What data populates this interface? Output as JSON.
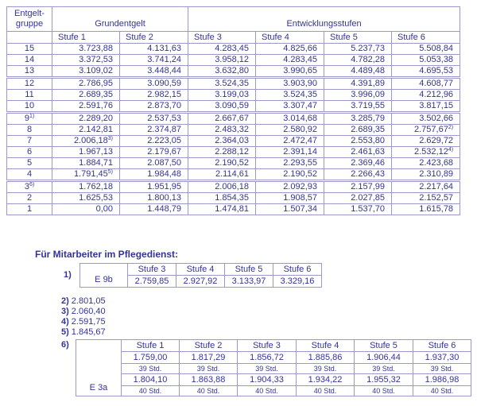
{
  "colors": {
    "text": "#333399",
    "border": "#9999cc",
    "background": "#ffffff"
  },
  "main_table": {
    "corner_header_line1": "Entgelt-",
    "corner_header_line2": "gruppe",
    "group_headers": {
      "grundentgelt": "Grundentgelt",
      "entwicklungsstufen": "Entwicklungsstufen"
    },
    "stufe_headers": [
      "Stufe 1",
      "Stufe 2",
      "Stufe 3",
      "Stufe 4",
      "Stufe 5",
      "Stufe 6"
    ],
    "rows": [
      {
        "group": "15",
        "group_sup": "",
        "values": [
          "3.723,88",
          "4.131,63",
          "4.283,45",
          "4.825,66",
          "5.237,73",
          "5.508,84"
        ],
        "value_sups": [
          "",
          "",
          "",
          "",
          "",
          ""
        ],
        "separator_below": false
      },
      {
        "group": "14",
        "group_sup": "",
        "values": [
          "3.372,53",
          "3.741,24",
          "3.958,12",
          "4.283,45",
          "4.782,28",
          "5.053,38"
        ],
        "value_sups": [
          "",
          "",
          "",
          "",
          "",
          ""
        ],
        "separator_below": false
      },
      {
        "group": "13",
        "group_sup": "",
        "values": [
          "3.109,02",
          "3.448,44",
          "3.632,80",
          "3.990,65",
          "4.489,48",
          "4.695,53"
        ],
        "value_sups": [
          "",
          "",
          "",
          "",
          "",
          ""
        ],
        "separator_below": true
      },
      {
        "group": "12",
        "group_sup": "",
        "values": [
          "2.786,95",
          "3.090,59",
          "3.524,35",
          "3.903,90",
          "4.391,89",
          "4.608,77"
        ],
        "value_sups": [
          "",
          "",
          "",
          "",
          "",
          ""
        ],
        "separator_below": false
      },
      {
        "group": "11",
        "group_sup": "",
        "values": [
          "2.689,35",
          "2.982,15",
          "3.199,03",
          "3.524,35",
          "3.996,09",
          "4.212,96"
        ],
        "value_sups": [
          "",
          "",
          "",
          "",
          "",
          ""
        ],
        "separator_below": false
      },
      {
        "group": "10",
        "group_sup": "",
        "values": [
          "2.591,76",
          "2.873,70",
          "3.090,59",
          "3.307,47",
          "3.719,55",
          "3.817,15"
        ],
        "value_sups": [
          "",
          "",
          "",
          "",
          "",
          ""
        ],
        "separator_below": true
      },
      {
        "group": "9",
        "group_sup": "1)",
        "values": [
          "2.289,20",
          "2.537,53",
          "2.667,67",
          "3.014,68",
          "3.285,79",
          "3.502,66"
        ],
        "value_sups": [
          "",
          "",
          "",
          "",
          "",
          ""
        ],
        "separator_below": false
      },
      {
        "group": "8",
        "group_sup": "",
        "values": [
          "2.142,81",
          "2.374,87",
          "2.483,32",
          "2.580,92",
          "2.689,35",
          "2.757,67"
        ],
        "value_sups": [
          "",
          "",
          "",
          "",
          "",
          "2)"
        ],
        "separator_below": false
      },
      {
        "group": "7",
        "group_sup": "",
        "values": [
          "2.006,18",
          "2.223,05",
          "2.364,03",
          "2.472,47",
          "2.553,80",
          "2.629,72"
        ],
        "value_sups": [
          "3)",
          "",
          "",
          "",
          "",
          ""
        ],
        "separator_below": false
      },
      {
        "group": "6",
        "group_sup": "",
        "values": [
          "1.967,13",
          "2.179,67",
          "2.288,12",
          "2.391,14",
          "2.461,63",
          "2.532,12"
        ],
        "value_sups": [
          "",
          "",
          "",
          "",
          "",
          "4)"
        ],
        "separator_below": false
      },
      {
        "group": "5",
        "group_sup": "",
        "values": [
          "1.884,71",
          "2.087,50",
          "2.190,52",
          "2.293,55",
          "2.369,46",
          "2.423,68"
        ],
        "value_sups": [
          "",
          "",
          "",
          "",
          "",
          ""
        ],
        "separator_below": false
      },
      {
        "group": "4",
        "group_sup": "",
        "values": [
          "1.791,45",
          "1.984,48",
          "2.114,61",
          "2.190,52",
          "2.266,43",
          "2.310,89"
        ],
        "value_sups": [
          "5)",
          "",
          "",
          "",
          "",
          ""
        ],
        "separator_below": true
      },
      {
        "group": "3",
        "group_sup": "6)",
        "values": [
          "1.762,18",
          "1.951,95",
          "2.006,18",
          "2.092,93",
          "2.157,99",
          "2.217,64"
        ],
        "value_sups": [
          "",
          "",
          "",
          "",
          "",
          ""
        ],
        "separator_below": false
      },
      {
        "group": "2",
        "group_sup": "",
        "values": [
          "1.625,53",
          "1.800,13",
          "1.854,35",
          "1.908,57",
          "2.027,85",
          "2.152,57"
        ],
        "value_sups": [
          "",
          "",
          "",
          "",
          "",
          ""
        ],
        "separator_below": false
      },
      {
        "group": "1",
        "group_sup": "",
        "values": [
          "0,00",
          "1.448,79",
          "1.474,81",
          "1.507,34",
          "1.537,70",
          "1.615,78"
        ],
        "value_sups": [
          "",
          "",
          "",
          "",
          "",
          ""
        ],
        "separator_below": false
      }
    ]
  },
  "pflegedienst": {
    "heading": "Für Mitarbeiter im Pflegedienst:",
    "footnote_1": {
      "label": "1)",
      "table": {
        "row_label": "E 9b",
        "headers": [
          "Stufe 3",
          "Stufe 4",
          "Stufe 5",
          "Stufe 6"
        ],
        "values": [
          "2.759,85",
          "2.927,92",
          "3.133,97",
          "3.329,16"
        ]
      }
    },
    "footnotes": [
      {
        "label": "2)",
        "value": "2.801,05"
      },
      {
        "label": "3)",
        "value": "2.060,40"
      },
      {
        "label": "4)",
        "value": "2.591,75"
      },
      {
        "label": "5)",
        "value": "1.845,67"
      }
    ],
    "footnote_6": {
      "label": "6)",
      "table": {
        "row_label": "E 3a",
        "headers": [
          "Stufe 1",
          "Stufe 2",
          "Stufe 3",
          "Stufe 4",
          "Stufe 5",
          "Stufe 6"
        ],
        "rows": [
          {
            "type": "salary",
            "values": [
              "1.759,00",
              "1.817,29",
              "1.856,72",
              "1.885,86",
              "1.906,44",
              "1.937,30"
            ]
          },
          {
            "type": "hours",
            "values": [
              "39 Std.",
              "39 Std.",
              "39 Std.",
              "39 Std.",
              "39 Std.",
              "39 Std."
            ]
          },
          {
            "type": "salary",
            "values": [
              "1.804,10",
              "1.863,88",
              "1.904,33",
              "1.934,22",
              "1.955,32",
              "1.986,98"
            ]
          },
          {
            "type": "hours",
            "values": [
              "40 Std.",
              "40 Std.",
              "40 Std.",
              "40 Std.",
              "40 Std.",
              "40 Std."
            ]
          }
        ]
      }
    }
  }
}
